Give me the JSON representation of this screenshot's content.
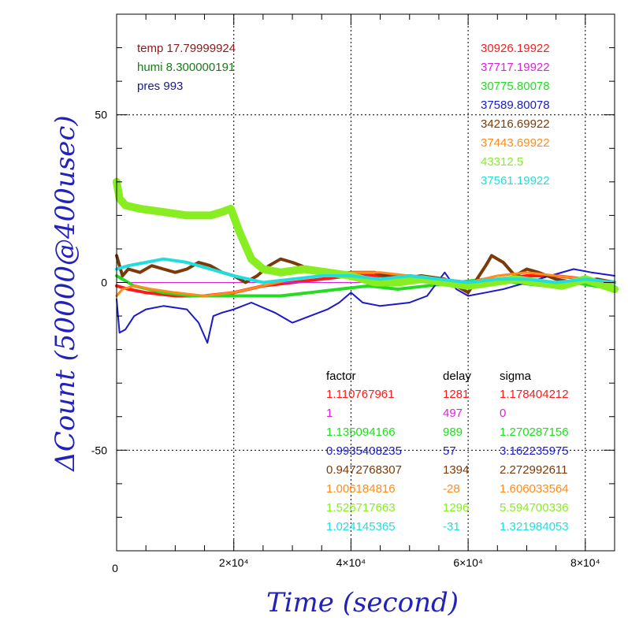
{
  "chart_data": {
    "type": "line",
    "xlabel": "Time (second)",
    "ylabel": "ΔCount (50000@400usec)",
    "xlim": [
      0,
      85000
    ],
    "ylim": [
      -80,
      80
    ],
    "grid": true,
    "x_ticks": [
      {
        "value": 0,
        "label": "0"
      },
      {
        "value": 20000,
        "label": "2×10⁴"
      },
      {
        "value": 40000,
        "label": "4×10⁴"
      },
      {
        "value": 60000,
        "label": "6×10⁴"
      },
      {
        "value": 80000,
        "label": "8×10⁴"
      }
    ],
    "y_ticks": [
      {
        "value": 50,
        "label": "50"
      },
      {
        "value": 0,
        "label": "0"
      },
      {
        "value": -50,
        "label": "-50"
      }
    ],
    "env_labels": [
      {
        "text": "temp 17.79999924",
        "color": "#8b1a1a"
      },
      {
        "text": "humi 8.300000191",
        "color": "#1a7a1a"
      },
      {
        "text": "pres 993",
        "color": "#1a1a8b"
      }
    ],
    "table_headers": {
      "factor": "factor",
      "delay": "delay",
      "sigma": "sigma"
    },
    "series": [
      {
        "color": "#ff1a1a",
        "value": "30926.19922",
        "factor": "1.110767961",
        "delay": "1281",
        "sigma": "1.178404212",
        "x": [
          0,
          2000,
          5000,
          10000,
          15000,
          20000,
          25000,
          30000,
          35000,
          40000,
          45000,
          50000,
          55000,
          60000,
          65000,
          70000,
          75000,
          80000,
          85000
        ],
        "y": [
          -1,
          -2,
          -3,
          -4,
          -4,
          -3,
          -1,
          0,
          1,
          2,
          2,
          2,
          1,
          0,
          1,
          2,
          2,
          1,
          0
        ]
      },
      {
        "color": "#dd22dd",
        "value": "37717.19922",
        "factor": "1",
        "delay": "497",
        "sigma": "0",
        "x": [
          0,
          85000
        ],
        "y": [
          0,
          0
        ]
      },
      {
        "color": "#22dd22",
        "value": "30775.80078",
        "factor": "1.135094166",
        "delay": "989",
        "sigma": "1.270287156",
        "x": [
          0,
          3000,
          8000,
          13000,
          18000,
          23000,
          28000,
          33000,
          38000,
          43000,
          48000,
          53000,
          58000,
          63000,
          68000,
          73000,
          78000,
          85000
        ],
        "y": [
          2,
          -1,
          -3,
          -4,
          -4,
          -4,
          -4,
          -3,
          -2,
          -1,
          -2,
          -1,
          0,
          1,
          0,
          -1,
          0,
          -2
        ]
      },
      {
        "color": "#1a1acc",
        "value": "37589.80078",
        "factor": "0.9935408235",
        "delay": "57",
        "sigma": "3.162235975",
        "x": [
          0,
          500,
          1500,
          3000,
          5000,
          8000,
          12000,
          14000,
          15500,
          16500,
          18000,
          20000,
          23000,
          27000,
          30000,
          33000,
          36000,
          38000,
          40000,
          42000,
          45000,
          50000,
          53000,
          56000,
          58000,
          60000,
          63000,
          66000,
          70000,
          74000,
          78000,
          81000,
          85000
        ],
        "y": [
          -5,
          -15,
          -14,
          -10,
          -8,
          -7,
          -8,
          -12,
          -18,
          -10,
          -9,
          -8,
          -6,
          -9,
          -12,
          -10,
          -8,
          -6,
          -3,
          -6,
          -7,
          -6,
          -4,
          3,
          -2,
          -4,
          -3,
          -2,
          0,
          2,
          4,
          3,
          2
        ]
      },
      {
        "color": "#7a3a0a",
        "value": "34216.69922",
        "factor": "0.9472768307",
        "delay": "1394",
        "sigma": "2.272992611",
        "x": [
          0,
          1000,
          2000,
          4000,
          6000,
          8000,
          10000,
          12000,
          14000,
          16000,
          18000,
          20000,
          22000,
          24000,
          26000,
          28000,
          30000,
          33000,
          36000,
          40000,
          44000,
          48000,
          52000,
          56000,
          60000,
          63000,
          64000,
          66000,
          68000,
          70000,
          72000,
          75000,
          78000,
          82000,
          85000
        ],
        "y": [
          8,
          2,
          4,
          3,
          5,
          4,
          3,
          4,
          6,
          5,
          3,
          2,
          0,
          2,
          5,
          7,
          6,
          4,
          2,
          3,
          3,
          1,
          2,
          1,
          -3,
          5,
          8,
          6,
          2,
          4,
          3,
          1,
          0,
          1,
          0
        ]
      },
      {
        "color": "#ff8c1a",
        "value": "37443.69922",
        "factor": "1.006184816",
        "delay": "-28",
        "sigma": "1.606033564",
        "x": [
          0,
          1000,
          3000,
          6000,
          10000,
          15000,
          20000,
          25000,
          30000,
          35000,
          40000,
          45000,
          50000,
          55000,
          60000,
          65000,
          70000,
          75000,
          80000,
          85000
        ],
        "y": [
          -4,
          -2,
          -1,
          -2,
          -3,
          -4,
          -3,
          -1,
          1,
          2,
          3,
          3,
          2,
          1,
          0,
          2,
          3,
          2,
          1,
          0
        ]
      },
      {
        "color": "#88ee22",
        "value": "43312.5",
        "factor": "1.526717663",
        "delay": "1296",
        "sigma": "5.594700336",
        "x": [
          0,
          500,
          1500,
          4000,
          8000,
          12000,
          16000,
          18000,
          19500,
          21000,
          23000,
          25000,
          28000,
          32000,
          36000,
          40000,
          44000,
          48000,
          52000,
          56000,
          60000,
          64000,
          68000,
          72000,
          76000,
          80000,
          85000
        ],
        "y": [
          30,
          25,
          23,
          22,
          21,
          20,
          20,
          21,
          22,
          15,
          7,
          4,
          3,
          4,
          3,
          2,
          0,
          0,
          1,
          0,
          -1,
          0,
          1,
          0,
          -1,
          1,
          -2
        ]
      },
      {
        "color": "#22dddd",
        "value": "37561.19922",
        "factor": "1.024145365",
        "delay": "-31",
        "sigma": "1.321984053",
        "x": [
          0,
          2000,
          5000,
          8000,
          12000,
          16000,
          20000,
          25000,
          30000,
          35000,
          40000,
          45000,
          50000,
          55000,
          60000,
          65000,
          70000,
          75000,
          80000,
          85000
        ],
        "y": [
          4,
          5,
          6,
          7,
          6,
          4,
          2,
          0,
          1,
          2,
          2,
          1,
          2,
          1,
          0,
          1,
          1,
          0,
          1,
          0
        ]
      }
    ]
  }
}
